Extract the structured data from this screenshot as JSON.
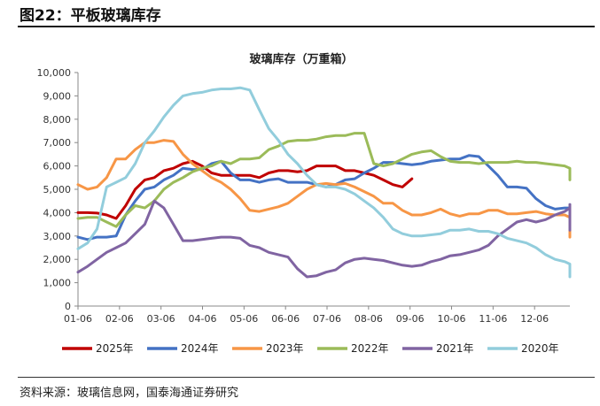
{
  "figure": {
    "title": "图22：平板玻璃库存",
    "source": "资料来源：玻璃信息网，国泰海通证券研究"
  },
  "chart_data": {
    "type": "line",
    "title": "玻璃库存（万重箱）",
    "xlabel": "",
    "ylabel": "",
    "ylim": [
      0,
      10000
    ],
    "yticks": [
      "0",
      "1,000",
      "2,000",
      "3,000",
      "4,000",
      "5,000",
      "6,000",
      "7,000",
      "8,000",
      "9,000",
      "10,000"
    ],
    "xticks": [
      "01-06",
      "02-06",
      "03-06",
      "04-06",
      "05-06",
      "06-06",
      "07-06",
      "08-06",
      "09-06",
      "10-06",
      "11-06",
      "12-06"
    ],
    "x_unit": "week of year (1 = 01-06, weekly)",
    "grid": false,
    "legend": "bottom",
    "series": [
      {
        "name": "2025年",
        "color": "#c00000",
        "start_week": 1,
        "values": [
          4000,
          4000,
          3980,
          3900,
          3750,
          4300,
          5000,
          5400,
          5500,
          5800,
          5900,
          6100,
          6200,
          6000,
          5700,
          5600,
          5600,
          5600,
          5600,
          5500,
          5700,
          5800,
          5800,
          5750,
          5800,
          6000,
          6000,
          6000,
          5800,
          5800,
          5700,
          5600,
          5400,
          5200,
          5100,
          5450
        ]
      },
      {
        "name": "2024年",
        "color": "#4472c4",
        "start_week": 1,
        "values": [
          2950,
          2850,
          2950,
          2950,
          3000,
          3900,
          4500,
          5000,
          5100,
          5400,
          5600,
          5900,
          5850,
          5850,
          6100,
          6200,
          5700,
          5400,
          5400,
          5300,
          5400,
          5450,
          5300,
          5300,
          5300,
          5200,
          5100,
          5200,
          5400,
          5450,
          5700,
          5900,
          6150,
          6150,
          6100,
          6050,
          6100,
          6200,
          6250,
          6300,
          6300,
          6450,
          6400,
          6000,
          5600,
          5100,
          5100,
          5050,
          4600,
          4300,
          4150,
          4200,
          4200,
          4300,
          4350,
          4300,
          4250,
          4300,
          4150,
          4050,
          3950
        ]
      },
      {
        "name": "2023年",
        "color": "#f79646",
        "start_week": 1,
        "values": [
          5200,
          5000,
          5100,
          5500,
          6300,
          6300,
          6700,
          7000,
          7000,
          7100,
          7050,
          6500,
          6100,
          5800,
          5500,
          5300,
          5000,
          4600,
          4100,
          4050,
          4150,
          4250,
          4400,
          4700,
          5000,
          5200,
          5250,
          5200,
          5250,
          5100,
          4900,
          4700,
          4400,
          4400,
          4100,
          3900,
          3900,
          4000,
          4150,
          3950,
          3850,
          3950,
          3950,
          4100,
          4100,
          3950,
          3950,
          4000,
          4050,
          3950,
          3900,
          3900,
          3800,
          3650,
          3300,
          3050,
          2950,
          3000,
          3050,
          3000,
          2950
        ]
      },
      {
        "name": "2022年",
        "color": "#9bbb59",
        "start_week": 1,
        "values": [
          3750,
          3800,
          3800,
          3600,
          3400,
          3900,
          4300,
          4200,
          4500,
          5000,
          5300,
          5500,
          5750,
          5900,
          6000,
          6200,
          6100,
          6300,
          6300,
          6350,
          6700,
          6850,
          7050,
          7100,
          7100,
          7150,
          7250,
          7300,
          7300,
          7400,
          7400,
          6100,
          6000,
          6100,
          6300,
          6500,
          6600,
          6650,
          6400,
          6200,
          6150,
          6150,
          6100,
          6150,
          6150,
          6150,
          6200,
          6150,
          6150,
          6100,
          6050,
          6000,
          5900,
          5700,
          5500,
          5450,
          5400
        ]
      },
      {
        "name": "2021年",
        "color": "#8064a2",
        "start_week": 1,
        "values": [
          1450,
          1700,
          2000,
          2300,
          2500,
          2700,
          3100,
          3500,
          4500,
          4200,
          3500,
          2800,
          2800,
          2850,
          2900,
          2950,
          2950,
          2900,
          2600,
          2500,
          2300,
          2200,
          2100,
          1600,
          1250,
          1300,
          1450,
          1550,
          1850,
          2000,
          2050,
          2000,
          1950,
          1850,
          1750,
          1700,
          1750,
          1900,
          2000,
          2150,
          2200,
          2300,
          2400,
          2600,
          3000,
          3300,
          3600,
          3700,
          3600,
          3700,
          3900,
          4050,
          4200,
          4300,
          4350,
          4050,
          3700,
          3300,
          3250,
          3300,
          3400,
          3500
        ]
      },
      {
        "name": "2020年",
        "color": "#92cddc",
        "start_week": 1,
        "values": [
          2450,
          2700,
          3300,
          5100,
          5300,
          5500,
          6100,
          7000,
          7500,
          8100,
          8600,
          9000,
          9100,
          9150,
          9250,
          9300,
          9300,
          9350,
          9250,
          8400,
          7600,
          7100,
          6500,
          6100,
          5600,
          5200,
          5100,
          5100,
          5000,
          4800,
          4500,
          4200,
          3800,
          3300,
          3100,
          3000,
          3000,
          3050,
          3100,
          3250,
          3250,
          3300,
          3200,
          3200,
          3100,
          2900,
          2800,
          2700,
          2500,
          2200,
          2000,
          1900,
          1800,
          1650,
          1500,
          1300,
          1250,
          1250
        ]
      }
    ]
  }
}
